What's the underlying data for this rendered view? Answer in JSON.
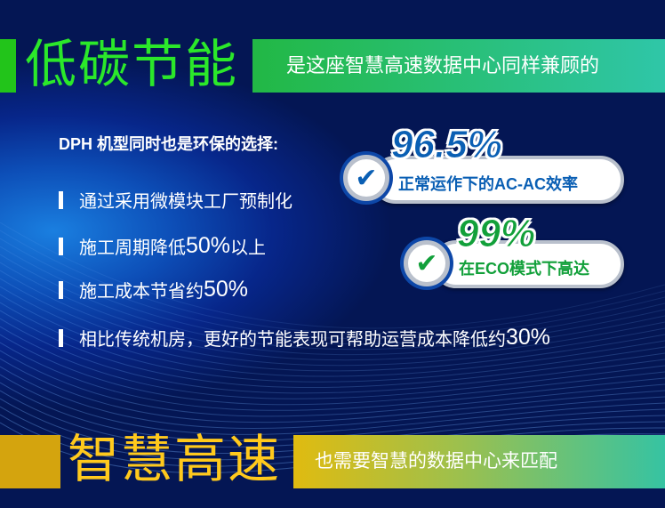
{
  "top_banner": {
    "title": "低碳节能",
    "subtitle": "是这座智慧高速数据中心同样兼顾的"
  },
  "intro": {
    "heading": "DPH 机型同时也是环保的选择:"
  },
  "bullets": [
    {
      "text": "通过采用微模块工厂预制化",
      "num": ""
    },
    {
      "text": "施工周期降低",
      "num": "50%",
      "suffix": "以上"
    },
    {
      "text": "施工成本节省约",
      "num": "50%",
      "suffix": ""
    },
    {
      "text": "相比传统机房，更好的节能表现可帮助运营成本降低约",
      "num": "30%",
      "suffix": ""
    }
  ],
  "badges": [
    {
      "value": "96.5%",
      "label": "正常运作下的AC-AC效率",
      "icon": "checkmark-icon",
      "color": "#0a5fb4"
    },
    {
      "value": "99%",
      "label": "在ECO模式下高达",
      "icon": "checkmark-icon",
      "color": "#12a03a"
    }
  ],
  "bottom_banner": {
    "title": "智慧高速",
    "subtitle": "也需要智慧的数据中心来匹配"
  },
  "colors": {
    "green_accent": "#2be82a",
    "gold_accent": "#ffc91c",
    "background": "#07268a"
  }
}
